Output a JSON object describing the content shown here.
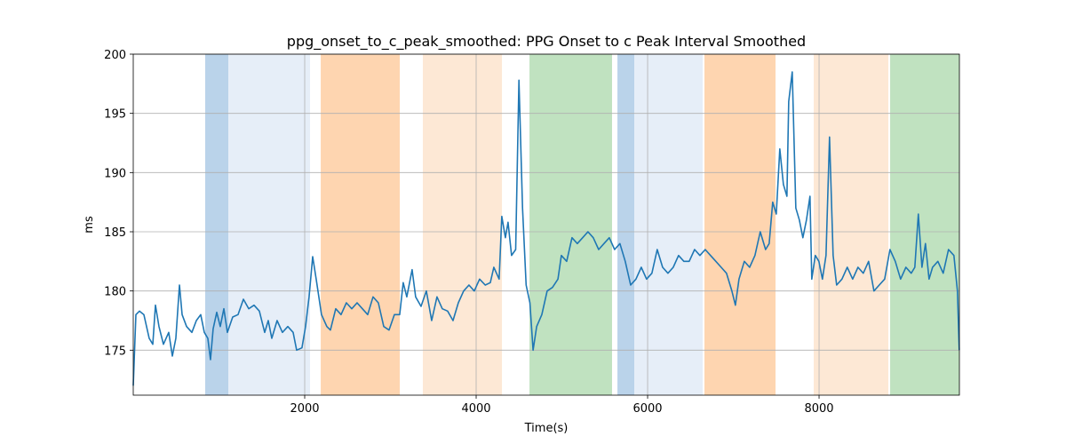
{
  "chart_data": {
    "type": "line",
    "title": "ppg_onset_to_c_peak_smoothed: PPG Onset to c Peak Interval Smoothed",
    "x_label": "Time(s)",
    "y_label": "ms",
    "xlim": [
      0,
      9637
    ],
    "ylim": [
      171.2,
      200
    ],
    "xticks": [
      2000,
      4000,
      6000,
      8000
    ],
    "yticks": [
      175,
      180,
      185,
      190,
      195,
      200
    ],
    "grid": true,
    "spans": [
      {
        "x": [
          839,
          1109
        ],
        "color": "#bad3ea"
      },
      {
        "x": [
          1109,
          2062
        ],
        "color": "#e6eef8"
      },
      {
        "x": [
          2187,
          3109
        ],
        "color": "#fed5b0"
      },
      {
        "x": [
          3378,
          4301
        ],
        "color": "#fde8d5"
      },
      {
        "x": [
          4622,
          5585
        ],
        "color": "#c0e2c0"
      },
      {
        "x": [
          5648,
          5845
        ],
        "color": "#bad3ea"
      },
      {
        "x": [
          5845,
          6642
        ],
        "color": "#e6eef8"
      },
      {
        "x": [
          6663,
          7492
        ],
        "color": "#fed5b0"
      },
      {
        "x": [
          7938,
          8808
        ],
        "color": "#fde8d5"
      },
      {
        "x": [
          8829,
          9637
        ],
        "color": "#c0e2c0"
      }
    ],
    "series": [
      {
        "color": "#1f77b4",
        "x": [
          0,
          31,
          73,
          124,
          186,
          228,
          259,
          300,
          352,
          414,
          456,
          497,
          539,
          570,
          622,
          684,
          736,
          787,
          829,
          870,
          901,
          932,
          974,
          1015,
          1057,
          1098,
          1160,
          1222,
          1285,
          1347,
          1409,
          1471,
          1533,
          1575,
          1616,
          1678,
          1740,
          1803,
          1865,
          1906,
          1968,
          2010,
          2051,
          2093,
          2134,
          2196,
          2258,
          2300,
          2362,
          2424,
          2486,
          2549,
          2611,
          2673,
          2735,
          2797,
          2859,
          2922,
          2984,
          3046,
          3108,
          3149,
          3191,
          3253,
          3294,
          3357,
          3419,
          3481,
          3543,
          3605,
          3667,
          3730,
          3792,
          3854,
          3916,
          3978,
          4040,
          4106,
          4165,
          4206,
          4268,
          4299,
          4341,
          4372,
          4413,
          4461,
          4499,
          4541,
          4583,
          4627,
          4664,
          4706,
          4766,
          4828,
          4890,
          4954,
          4994,
          5056,
          5118,
          5180,
          5242,
          5304,
          5366,
          5429,
          5491,
          5553,
          5615,
          5677,
          5739,
          5802,
          5864,
          5926,
          5988,
          6050,
          6112,
          6175,
          6237,
          6299,
          6361,
          6423,
          6485,
          6548,
          6610,
          6672,
          6734,
          6796,
          6858,
          6920,
          6983,
          7024,
          7066,
          7128,
          7190,
          7252,
          7314,
          7376,
          7418,
          7459,
          7501,
          7542,
          7584,
          7625,
          7646,
          7687,
          7729,
          7770,
          7811,
          7853,
          7894,
          7915,
          7956,
          7998,
          8039,
          8081,
          8122,
          8164,
          8205,
          8267,
          8329,
          8392,
          8454,
          8516,
          8578,
          8640,
          8702,
          8765,
          8827,
          8889,
          8951,
          9013,
          9075,
          9117,
          9158,
          9200,
          9241,
          9283,
          9324,
          9386,
          9448,
          9510,
          9573,
          9614,
          9635
        ],
        "values": [
          172,
          178,
          178.3,
          178,
          176,
          175.5,
          178.8,
          177,
          175.5,
          176.5,
          174.5,
          176,
          180.5,
          178,
          177,
          176.5,
          177.5,
          178,
          176.5,
          176,
          174.2,
          176.8,
          178.2,
          177,
          178.5,
          176.5,
          177.8,
          178,
          179.3,
          178.5,
          178.8,
          178.3,
          176.5,
          177.5,
          176,
          177.5,
          176.5,
          177,
          176.5,
          175,
          175.2,
          177,
          179.5,
          182.9,
          181,
          178,
          177,
          176.7,
          178.5,
          178,
          179,
          178.5,
          179,
          178.5,
          178,
          179.5,
          179,
          177,
          176.7,
          178,
          178,
          180.7,
          179.5,
          181.8,
          179.5,
          178.7,
          180,
          177.5,
          179.5,
          178.5,
          178.3,
          177.5,
          179,
          180,
          180.5,
          180,
          181,
          180.5,
          180.7,
          182,
          181,
          186.3,
          184.5,
          185.8,
          183,
          183.5,
          197.8,
          187,
          180.5,
          179,
          175,
          177,
          178,
          180,
          180.3,
          181,
          183,
          182.5,
          184.5,
          184,
          184.5,
          185,
          184.5,
          183.5,
          184,
          184.5,
          183.5,
          184,
          182.5,
          180.5,
          181,
          182,
          181,
          181.5,
          183.5,
          182,
          181.5,
          182,
          183,
          182.5,
          182.5,
          183.5,
          183,
          183.5,
          183,
          182.5,
          182,
          181.5,
          180,
          178.8,
          181,
          182.5,
          182,
          183,
          185,
          183.5,
          184,
          187.5,
          186.5,
          192,
          189,
          188,
          196,
          198.5,
          187,
          186,
          184.5,
          186,
          188,
          181,
          183,
          182.5,
          181,
          183,
          193,
          183,
          180.5,
          181,
          182,
          181,
          182,
          181.5,
          182.5,
          180,
          180.5,
          181,
          183.5,
          182.5,
          181,
          182,
          181.5,
          182,
          186.5,
          182,
          184,
          181,
          182,
          182.5,
          181.5,
          183.5,
          183,
          180,
          175
        ]
      }
    ]
  }
}
